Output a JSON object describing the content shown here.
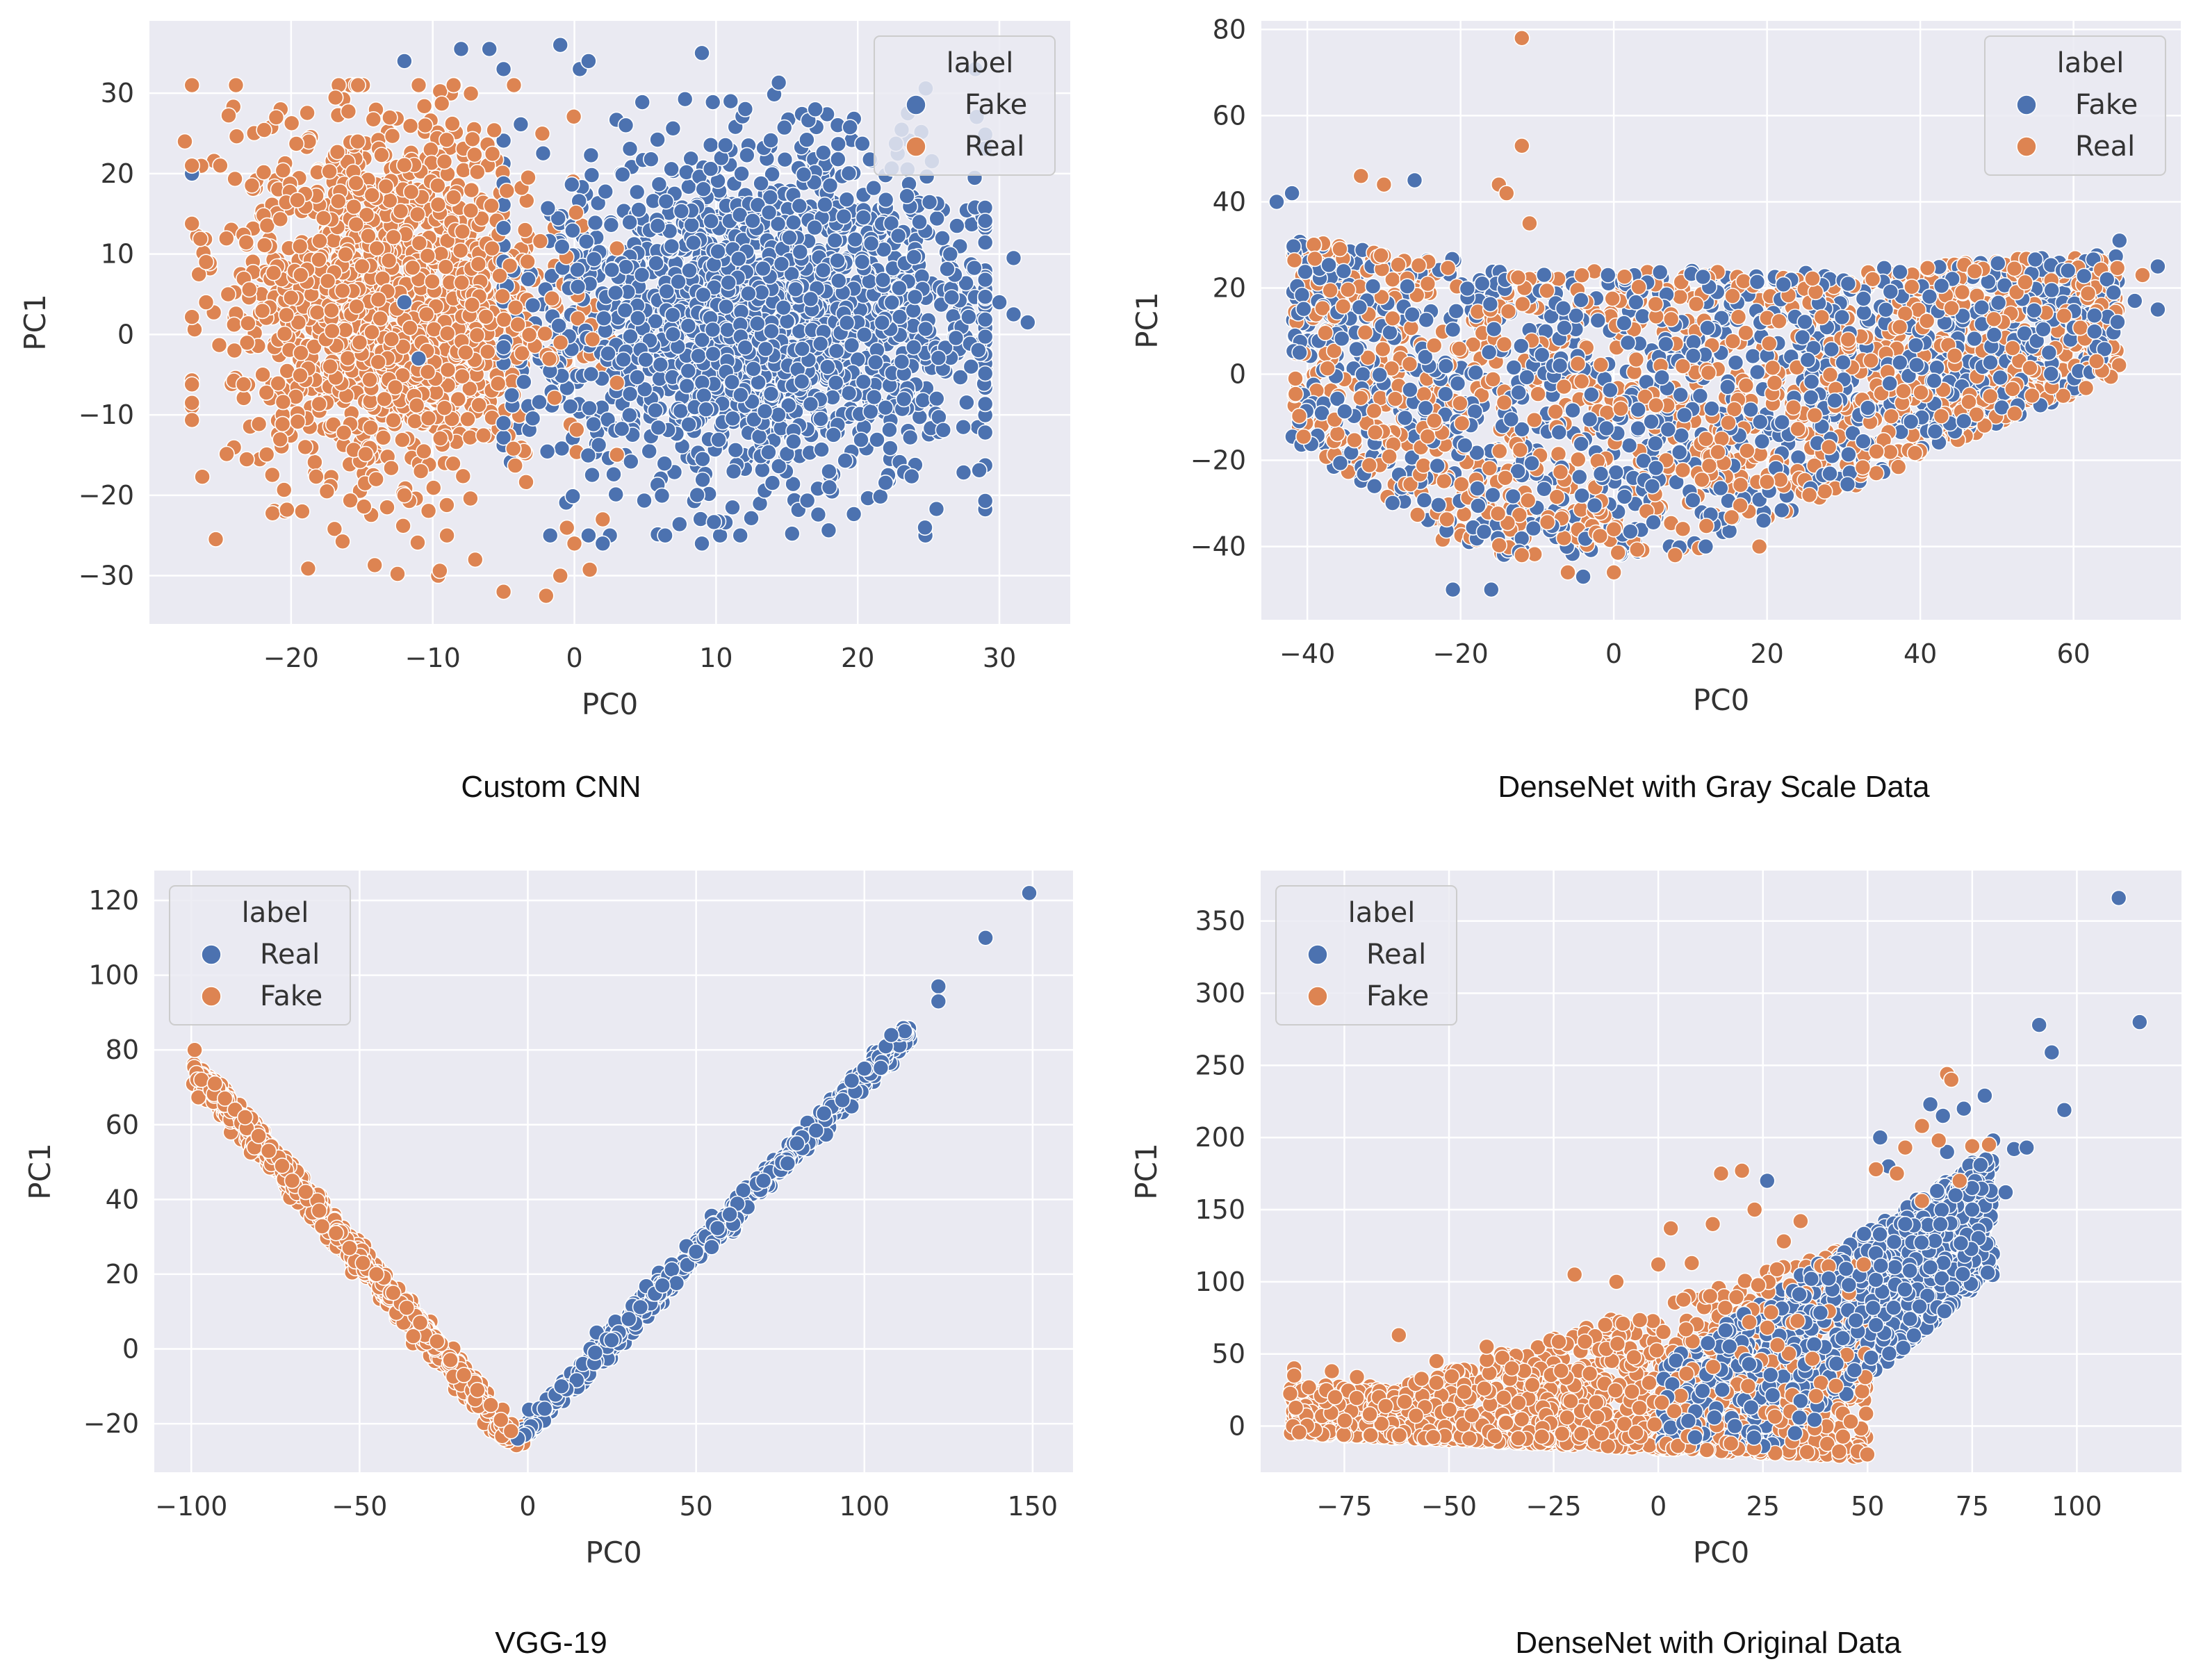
{
  "figure": {
    "background": "#ffffff",
    "panel_color": "#eaeaf2",
    "grid_color": "#ffffff"
  },
  "colors": {
    "blue": "#4c72b0",
    "orange": "#dd8452"
  },
  "chart_data": [
    {
      "type": "scatter",
      "caption": "Custom CNN",
      "xlabel": "PC0",
      "ylabel": "PC1",
      "xlim": [
        -30,
        35
      ],
      "ylim": [
        -36,
        39
      ],
      "xticks": [
        -20,
        -10,
        0,
        10,
        20,
        30
      ],
      "xtick_labels": [
        "−20",
        "−10",
        "0",
        "10",
        "20",
        "30"
      ],
      "yticks": [
        -30,
        -20,
        -10,
        0,
        10,
        20,
        30
      ],
      "ytick_labels": [
        "−30",
        "−20",
        "−10",
        "0",
        "10",
        "20",
        "30"
      ],
      "legend": {
        "title": "label",
        "position": "top-right",
        "entries": [
          "Fake",
          "Real"
        ]
      },
      "series": [
        {
          "name": "Fake",
          "color": "#4c72b0",
          "points": [
            [
              -12,
              34
            ],
            [
              -8,
              35.5
            ],
            [
              -6,
              35.5
            ],
            [
              -1,
              36
            ],
            [
              1,
              34
            ],
            [
              9,
              35
            ],
            [
              17,
              28
            ],
            [
              27,
              13.5
            ],
            [
              28,
              -4
            ],
            [
              30,
              4
            ],
            [
              31,
              9.5
            ],
            [
              32,
              1.5
            ],
            [
              31,
              2.5
            ],
            [
              2,
              -26
            ],
            [
              9,
              -26
            ],
            [
              1,
              -25
            ],
            [
              18,
              -19
            ],
            [
              -27,
              20
            ],
            [
              -12,
              4
            ],
            [
              -11,
              -3
            ]
          ]
        },
        {
          "name": "Real",
          "color": "#dd8452",
          "points": [
            [
              -27,
              31
            ],
            [
              -27.5,
              24
            ],
            [
              -27,
              21
            ],
            [
              -25,
              21
            ],
            [
              -26,
              9
            ],
            [
              -26,
              4
            ],
            [
              -24,
              -2
            ],
            [
              -22,
              -5
            ],
            [
              -19,
              -14
            ],
            [
              -14,
              -18
            ],
            [
              -12,
              -20
            ],
            [
              -9,
              -25
            ],
            [
              -7,
              -28
            ],
            [
              -5,
              -32
            ],
            [
              -2,
              -32.5
            ],
            [
              -1,
              -30
            ],
            [
              0,
              -26
            ],
            [
              2,
              -23
            ]
          ]
        }
      ],
      "clusters": [
        {
          "series": "Fake",
          "count": 1900,
          "cx": 13,
          "cy": 2,
          "sx": 8,
          "sy": 10.5,
          "xmin": -5,
          "xmax": 29,
          "ymin": -25,
          "ymax": 33
        },
        {
          "series": "Real",
          "count": 1500,
          "cx": -13,
          "cy": 4,
          "sx": 5.5,
          "sy": 11,
          "xmin": -27,
          "xmax": 3,
          "ymin": -30,
          "ymax": 31
        }
      ]
    },
    {
      "type": "scatter",
      "caption": "DenseNet with Gray Scale Data",
      "xlabel": "PC0",
      "ylabel": "PC1",
      "xlim": [
        -46,
        74
      ],
      "ylim": [
        -57,
        82
      ],
      "xticks": [
        -40,
        -20,
        0,
        20,
        40,
        60
      ],
      "xtick_labels": [
        "−40",
        "−20",
        "0",
        "20",
        "40",
        "60"
      ],
      "yticks": [
        -40,
        -20,
        0,
        20,
        40,
        60,
        80
      ],
      "ytick_labels": [
        "−40",
        "−20",
        "0",
        "20",
        "40",
        "60",
        "80"
      ],
      "legend": {
        "title": "label",
        "position": "top-right",
        "entries": [
          "Fake",
          "Real"
        ]
      },
      "series": [
        {
          "name": "Fake",
          "color": "#4c72b0",
          "points": [
            [
              -44,
              40
            ],
            [
              -42,
              42
            ],
            [
              -21,
              -50
            ],
            [
              -16,
              -50
            ],
            [
              -4,
              -47
            ],
            [
              12,
              -40
            ],
            [
              66,
              31
            ],
            [
              68,
              17
            ],
            [
              71,
              25
            ],
            [
              71,
              15
            ],
            [
              -26,
              45
            ],
            [
              -41,
              5
            ]
          ]
        },
        {
          "name": "Real",
          "color": "#dd8452",
          "points": [
            [
              -12,
              78
            ],
            [
              -12,
              53
            ],
            [
              -15,
              44
            ],
            [
              -14,
              42
            ],
            [
              -11,
              35
            ],
            [
              -33,
              46
            ],
            [
              -30,
              44
            ],
            [
              63,
              3
            ],
            [
              69,
              23
            ],
            [
              0,
              -46
            ],
            [
              8,
              -42
            ],
            [
              19,
              -40
            ],
            [
              -12,
              -42
            ],
            [
              -6,
              -46
            ]
          ]
        }
      ],
      "clusters": [
        {
          "series": "Fake",
          "count": 1200,
          "band": "v",
          "xmin": -42,
          "xmax": 66,
          "ymin": -44,
          "ymax": 32
        },
        {
          "series": "Real",
          "count": 1200,
          "band": "v",
          "xmin": -42,
          "xmax": 66,
          "ymin": -44,
          "ymax": 32
        }
      ]
    },
    {
      "type": "scatter",
      "caption": "VGG-19",
      "xlabel": "PC0",
      "ylabel": "PC1",
      "xlim": [
        -111,
        162
      ],
      "ylim": [
        -33,
        128
      ],
      "xticks": [
        -100,
        -50,
        0,
        50,
        100,
        150
      ],
      "xtick_labels": [
        "−100",
        "−50",
        "0",
        "50",
        "100",
        "150"
      ],
      "yticks": [
        -20,
        0,
        20,
        40,
        60,
        80,
        100,
        120
      ],
      "ytick_labels": [
        "−20",
        "0",
        "20",
        "40",
        "60",
        "80",
        "100",
        "120"
      ],
      "legend": {
        "title": "label",
        "position": "top-left",
        "entries": [
          "Real",
          "Fake"
        ]
      },
      "series": [
        {
          "name": "Real",
          "color": "#4c72b0",
          "points": [
            [
              149,
              122
            ],
            [
              136,
              110
            ],
            [
              122,
              97
            ],
            [
              122,
              93
            ],
            [
              112,
              85
            ],
            [
              108,
              84
            ],
            [
              100,
              75
            ],
            [
              88,
              63
            ],
            [
              80,
              55
            ],
            [
              70,
              45
            ],
            [
              60,
              36
            ],
            [
              50,
              26
            ],
            [
              40,
              17
            ],
            [
              30,
              8
            ],
            [
              20,
              -1
            ],
            [
              10,
              -10
            ],
            [
              5,
              -16
            ],
            [
              -1,
              -23
            ],
            [
              -3,
              -24
            ]
          ]
        },
        {
          "name": "Fake",
          "color": "#dd8452",
          "points": [
            [
              -99,
              80
            ],
            [
              -97,
              72
            ],
            [
              -93,
              71
            ],
            [
              -90,
              67
            ],
            [
              -87,
              64
            ],
            [
              -84,
              62
            ],
            [
              -80,
              57
            ],
            [
              -77,
              53
            ],
            [
              -73,
              49
            ],
            [
              -70,
              45
            ],
            [
              -66,
              42
            ],
            [
              -62,
              37
            ],
            [
              -57,
              31
            ],
            [
              -53,
              27
            ],
            [
              -49,
              23
            ],
            [
              -45,
              20
            ],
            [
              -40,
              15
            ],
            [
              -36,
              11
            ],
            [
              -32,
              7
            ],
            [
              -27,
              2
            ],
            [
              -23,
              -3
            ],
            [
              -19,
              -7
            ],
            [
              -15,
              -11
            ],
            [
              -11,
              -15
            ],
            [
              -8,
              -19
            ],
            [
              -5,
              -22
            ]
          ]
        }
      ],
      "clusters": [
        {
          "series": "Fake",
          "count": 900,
          "line": [
            [
              -98,
              74
            ],
            [
              -3,
              -25
            ]
          ],
          "spread": 1.4
        },
        {
          "series": "Real",
          "count": 700,
          "line": [
            [
              -3,
              -24
            ],
            [
              113,
              85
            ]
          ],
          "spread": 1.2
        }
      ]
    },
    {
      "type": "scatter",
      "caption": "DenseNet with Original Data",
      "xlabel": "PC0",
      "ylabel": "PC1",
      "xlim": [
        -95,
        125
      ],
      "ylim": [
        -32,
        385
      ],
      "xticks": [
        -75,
        -50,
        -25,
        0,
        25,
        50,
        75,
        100
      ],
      "xtick_labels": [
        "−75",
        "−50",
        "−25",
        "0",
        "25",
        "50",
        "75",
        "100"
      ],
      "yticks": [
        0,
        50,
        100,
        150,
        200,
        250,
        300,
        350
      ],
      "ytick_labels": [
        "0",
        "50",
        "100",
        "150",
        "200",
        "250",
        "300",
        "350"
      ],
      "legend": {
        "title": "label",
        "position": "top-left",
        "entries": [
          "Real",
          "Fake"
        ]
      },
      "series": [
        {
          "name": "Real",
          "color": "#4c72b0",
          "points": [
            [
              110,
              366
            ],
            [
              115,
              280
            ],
            [
              91,
              278
            ],
            [
              94,
              259
            ],
            [
              97,
              219
            ],
            [
              78,
              229
            ],
            [
              73,
              220
            ],
            [
              68,
              215
            ],
            [
              80,
              198
            ],
            [
              85,
              192
            ],
            [
              88,
              193
            ],
            [
              77,
              181
            ],
            [
              83,
              162
            ],
            [
              72,
              168
            ],
            [
              71,
              160
            ],
            [
              69,
              190
            ],
            [
              65,
              223
            ],
            [
              55,
              180
            ],
            [
              53,
              200
            ],
            [
              59,
              140
            ],
            [
              75,
              150
            ],
            [
              65,
              110
            ],
            [
              52,
              70
            ],
            [
              26,
              170
            ]
          ]
        },
        {
          "name": "Fake",
          "color": "#dd8452",
          "points": [
            [
              -87,
              40
            ],
            [
              -87,
              35
            ],
            [
              -78,
              38
            ],
            [
              -72,
              34
            ],
            [
              -62,
              63
            ],
            [
              -53,
              45
            ],
            [
              -41,
              55
            ],
            [
              -35,
              40
            ],
            [
              -20,
              105
            ],
            [
              -10,
              100
            ],
            [
              3,
              137
            ],
            [
              0,
              112
            ],
            [
              20,
              177
            ],
            [
              15,
              175
            ],
            [
              23,
              150
            ],
            [
              13,
              140
            ],
            [
              69,
              244
            ],
            [
              70,
              240
            ],
            [
              63,
              208
            ],
            [
              67,
              198
            ],
            [
              75,
              194
            ],
            [
              79,
              195
            ],
            [
              59,
              193
            ],
            [
              52,
              178
            ],
            [
              63,
              156
            ],
            [
              72,
              170
            ],
            [
              57,
              175
            ],
            [
              34,
              142
            ],
            [
              30,
              128
            ],
            [
              8,
              113
            ],
            [
              16,
              82
            ]
          ]
        }
      ],
      "clusters": [
        {
          "series": "Fake",
          "count": 1500,
          "band": "fan",
          "xmin": -88,
          "xmax": 50,
          "ymin": -15,
          "ymax": 150
        },
        {
          "series": "Real",
          "count": 1300,
          "band": "real4",
          "xmin": 0,
          "xmax": 80,
          "ymin": -15,
          "ymax": 200
        }
      ]
    }
  ]
}
